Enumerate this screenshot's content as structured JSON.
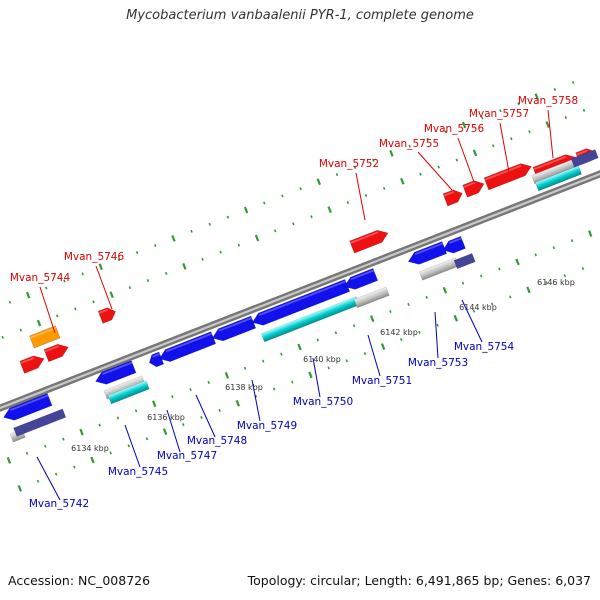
{
  "title": "Mycobacterium vanbaalenii PYR-1, complete genome",
  "accession": "Accession: NC_008726",
  "stats": "Topology: circular; Length: 6,491,865 bp; Genes: 6,037",
  "colors": {
    "forward_gene": "#ee1111",
    "reverse_gene": "#1111ee",
    "cds_orange": "#ff9900",
    "cds_cyan": "#00cccc",
    "cds_gray": "#bbbbbb",
    "cds_navy": "#444499",
    "label_forward": "#dd0000",
    "label_reverse": "#0000bb",
    "tick_green": "#339933",
    "backbone": "#8a8a8a"
  },
  "scale_ticks": [
    "6134 kbp",
    "6136 kbp",
    "6138 kbp",
    "6140 kbp",
    "6142 kbp",
    "6144 kbp",
    "6146 kbp"
  ],
  "forward_labels": [
    "Mvan_5744",
    "Mvan_5746",
    "Mvan_5752",
    "Mvan_5755",
    "Mvan_5756",
    "Mvan_5757",
    "Mvan_5758"
  ],
  "reverse_labels": [
    "Mvan_5742",
    "Mvan_5745",
    "Mvan_5747",
    "Mvan_5748",
    "Mvan_5749",
    "Mvan_5750",
    "Mvan_5751",
    "Mvan_5753",
    "Mvan_5754"
  ]
}
